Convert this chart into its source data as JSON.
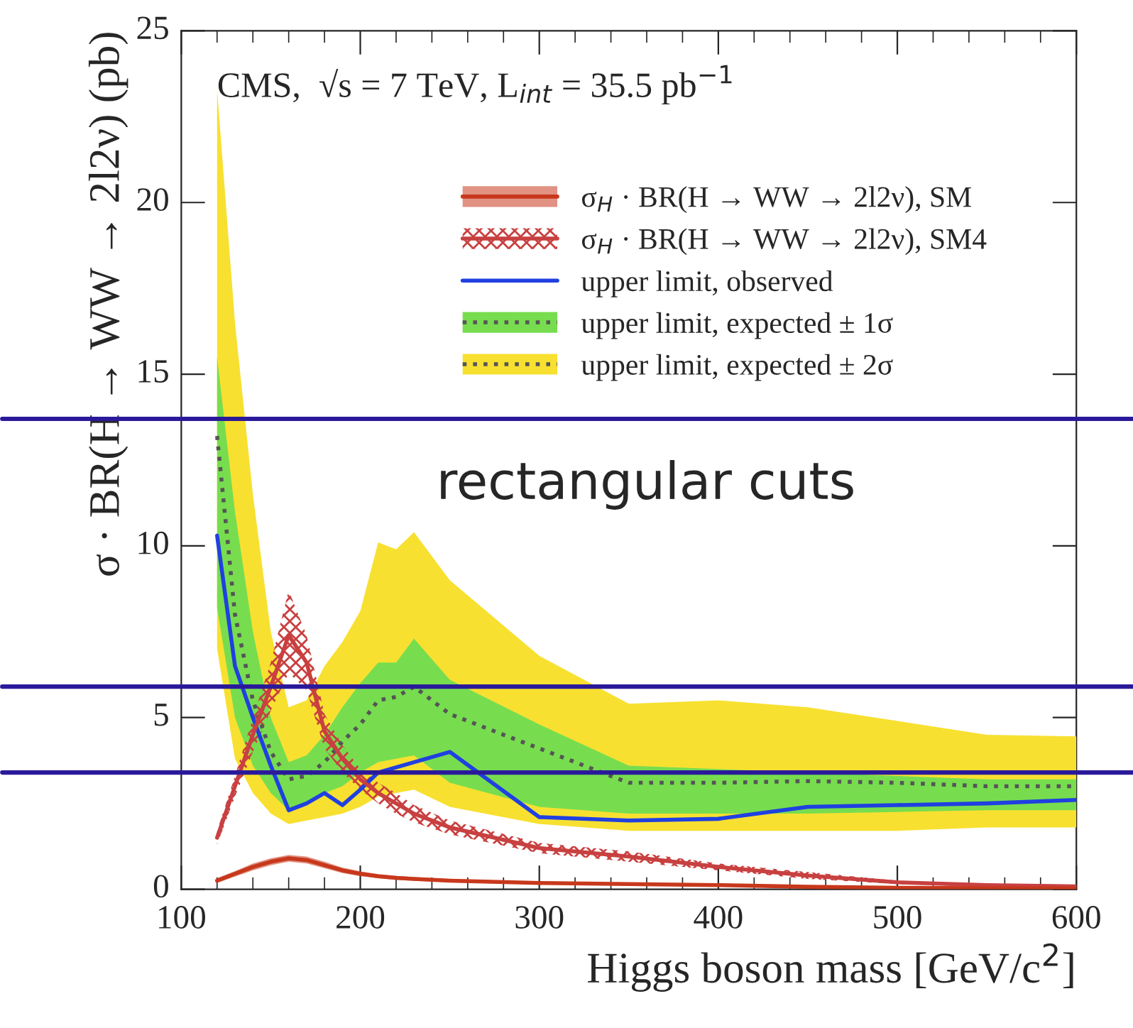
{
  "chart_data": {
    "type": "line",
    "x": [
      120,
      130,
      140,
      150,
      160,
      170,
      180,
      190,
      200,
      210,
      220,
      230,
      250,
      300,
      350,
      400,
      450,
      500,
      550,
      600
    ],
    "xlabel": "Higgs boson mass [GeV/c$^{2}$]",
    "ylabel": "σ · BR(H → WW → 2l2ν) (pb)",
    "xlim": [
      100,
      600
    ],
    "xticks": [
      100,
      200,
      300,
      400,
      500,
      600
    ],
    "ylim": [
      0,
      25
    ],
    "yticks": [
      0,
      5,
      10,
      15,
      20,
      25
    ],
    "grid": false,
    "legend": "top right",
    "series": [
      {
        "name": "σ$_{H}$ · BR(H → WW → 2l2ν), SM",
        "color": "#c8381c",
        "values": [
          0.25,
          0.45,
          0.65,
          0.8,
          0.9,
          0.85,
          0.7,
          0.55,
          0.45,
          0.38,
          0.33,
          0.3,
          0.25,
          0.18,
          0.15,
          0.12,
          0.07,
          0.04,
          0.03,
          0.02
        ],
        "lower": [
          0.18,
          0.37,
          0.55,
          0.7,
          0.8,
          0.75,
          0.61,
          0.47,
          0.38,
          0.32,
          0.27,
          0.25,
          0.2,
          0.14,
          0.12,
          0.09,
          0.05,
          0.02,
          0.01,
          0.0
        ],
        "upper": [
          0.32,
          0.53,
          0.75,
          0.9,
          1.0,
          0.95,
          0.8,
          0.63,
          0.52,
          0.44,
          0.39,
          0.35,
          0.3,
          0.22,
          0.18,
          0.15,
          0.09,
          0.06,
          0.05,
          0.04
        ]
      },
      {
        "name": "σ$_{H}$ · BR(H → WW → 2l2ν), SM4",
        "color": "#c84040",
        "values": [
          1.5,
          3.0,
          4.5,
          5.9,
          7.4,
          6.6,
          4.6,
          3.8,
          3.2,
          2.8,
          2.5,
          2.2,
          1.8,
          1.2,
          0.95,
          0.65,
          0.4,
          0.2,
          0.12,
          0.08
        ],
        "lower": [
          1.3,
          2.7,
          4.0,
          5.2,
          6.3,
          5.8,
          4.1,
          3.4,
          2.9,
          2.5,
          2.2,
          1.95,
          1.6,
          1.05,
          0.8,
          0.55,
          0.3,
          0.15,
          0.08,
          0.05
        ],
        "upper": [
          1.7,
          3.3,
          5.0,
          6.6,
          8.7,
          7.4,
          5.1,
          4.2,
          3.5,
          3.1,
          2.8,
          2.45,
          2.0,
          1.35,
          1.1,
          0.75,
          0.5,
          0.25,
          0.16,
          0.11
        ]
      },
      {
        "name": "upper limit, observed",
        "color": "#2040e0",
        "values": [
          10.3,
          6.5,
          5.0,
          3.6,
          2.3,
          2.5,
          2.8,
          2.45,
          2.9,
          3.4,
          3.55,
          3.7,
          4.0,
          2.1,
          2.0,
          2.05,
          2.4,
          2.45,
          2.5,
          2.6
        ]
      },
      {
        "color": "#555555",
        "line_style": "dotted",
        "values": [
          13.2,
          8.0,
          5.5,
          4.0,
          3.2,
          3.3,
          3.7,
          4.3,
          4.8,
          5.5,
          5.6,
          5.9,
          5.1,
          4.1,
          3.1,
          3.1,
          3.15,
          3.1,
          3.0,
          3.0
        ]
      },
      {
        "name": "upper limit, expected ± 1σ",
        "color": "#77dd4f",
        "values": [
          null,
          null,
          null,
          null,
          null,
          null,
          null,
          null,
          null,
          null,
          null,
          null,
          null,
          null,
          null,
          null,
          null,
          null,
          null,
          null
        ],
        "lower": [
          8.2,
          5.0,
          3.6,
          2.8,
          2.3,
          2.5,
          2.8,
          3.0,
          3.4,
          3.7,
          3.8,
          3.9,
          3.1,
          2.4,
          2.2,
          2.2,
          2.2,
          2.25,
          2.3,
          2.3
        ],
        "upper": [
          15.5,
          11.0,
          7.5,
          5.0,
          3.7,
          3.9,
          4.5,
          5.3,
          6.0,
          6.6,
          6.6,
          7.3,
          6.1,
          4.8,
          3.6,
          3.5,
          3.4,
          3.3,
          3.2,
          3.2
        ]
      },
      {
        "name": "upper limit, expected ± 2σ",
        "color": "#f8e030",
        "values": [
          null,
          null,
          null,
          null,
          null,
          null,
          null,
          null,
          null,
          null,
          null,
          null,
          null,
          null,
          null,
          null,
          null,
          null,
          null,
          null
        ],
        "lower": [
          7.0,
          3.8,
          2.8,
          2.2,
          1.9,
          2.0,
          2.1,
          2.2,
          2.4,
          2.7,
          2.8,
          2.9,
          2.4,
          1.9,
          1.7,
          1.7,
          1.7,
          1.7,
          1.8,
          1.8
        ],
        "upper": [
          23.3,
          16.5,
          11.5,
          7.5,
          5.3,
          5.5,
          6.5,
          7.2,
          8.1,
          10.1,
          9.9,
          10.4,
          9.0,
          6.8,
          5.4,
          5.5,
          5.3,
          4.9,
          4.5,
          4.45
        ]
      }
    ],
    "ref_lines": [
      {
        "axis": "y",
        "value": 13.7,
        "color": "#2a1a9a"
      },
      {
        "axis": "y",
        "value": 5.9,
        "color": "#2a1a9a"
      },
      {
        "axis": "y",
        "value": 3.4,
        "color": "#2a1a9a"
      }
    ],
    "annotations": [
      "CMS,  √s = 7 TeV, L$_{int}$ = 35.5 pb$^{−1}$",
      "rectangular cuts"
    ]
  }
}
